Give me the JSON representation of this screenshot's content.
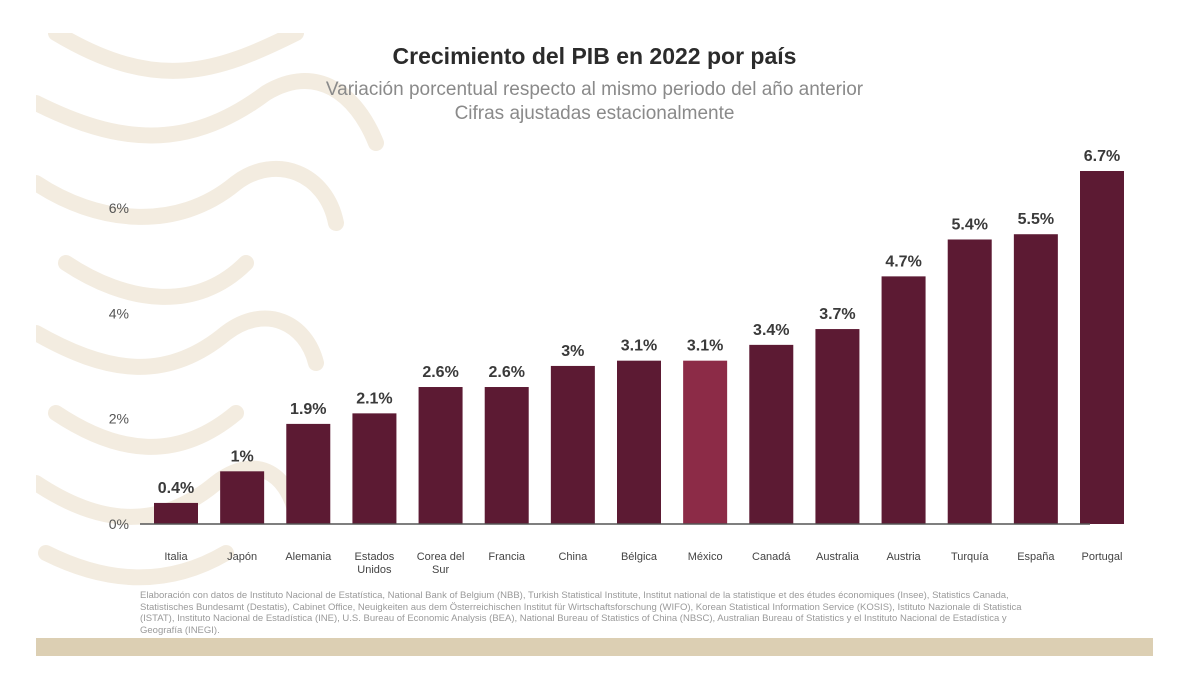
{
  "colors": {
    "bar": "#5c1a33",
    "highlight": "#8c2b47",
    "label": "#3a3a3a",
    "axis_text": "#555555",
    "band": "#dccfb3",
    "deco": "#f3ece0"
  },
  "chart_data": {
    "type": "bar",
    "title": "Crecimiento del PIB en 2022 por país",
    "subtitle": [
      "Variación porcentual respecto al mismo periodo del año anterior",
      "Cifras ajustadas estacionalmente"
    ],
    "categories": [
      [
        "Italia"
      ],
      [
        "Japón"
      ],
      [
        "Alemania"
      ],
      [
        "Estados",
        "Unidos"
      ],
      [
        "Corea del",
        "Sur"
      ],
      [
        "Francia"
      ],
      [
        "China"
      ],
      [
        "Bélgica"
      ],
      [
        "México"
      ],
      [
        "Canadá"
      ],
      [
        "Australia"
      ],
      [
        "Austria"
      ],
      [
        "Turquía"
      ],
      [
        "España"
      ],
      [
        "Portugal"
      ]
    ],
    "values": [
      0.4,
      1,
      1.9,
      2.1,
      2.6,
      2.6,
      3,
      3.1,
      3.1,
      3.4,
      3.7,
      4.7,
      5.4,
      5.5,
      6.7
    ],
    "value_labels": [
      "0.4%",
      "1%",
      "1.9%",
      "2.1%",
      "2.6%",
      "2.6%",
      "3%",
      "3.1%",
      "3.1%",
      "3.4%",
      "3.7%",
      "4.7%",
      "5.4%",
      "5.5%",
      "6.7%"
    ],
    "highlight_category": "México",
    "yticks": [
      0,
      2,
      4,
      6
    ],
    "ytick_labels": [
      "0%",
      "2%",
      "4%",
      "6%"
    ],
    "ylim": [
      0,
      6.7
    ],
    "xlabel": "",
    "ylabel": "",
    "grid": false,
    "legend": "none"
  },
  "source_note": "Elaboración con datos de Instituto Nacional de Estatística, National Bank of Belgium (NBB), Turkish Statistical Institute, Institut national de la statistique et des études économiques (Insee), Statistics Canada, Statistisches Bundesamt (Destatis), Cabinet Office, Neuigkeiten aus dem Österreichischen Institut für Wirtschaftsforschung (WIFO), Korean Statistical Information Service (KOSIS), Istituto Nazionale di Statistica (ISTAT), Instituto Nacional de Estadística (INE), U.S. Bureau of Economic Analysis (BEA), National Bureau of Statistics of China (NBSC), Australian Bureau of Statistics y el Instituto Nacional de Estadística y Geografía (INEGI)."
}
